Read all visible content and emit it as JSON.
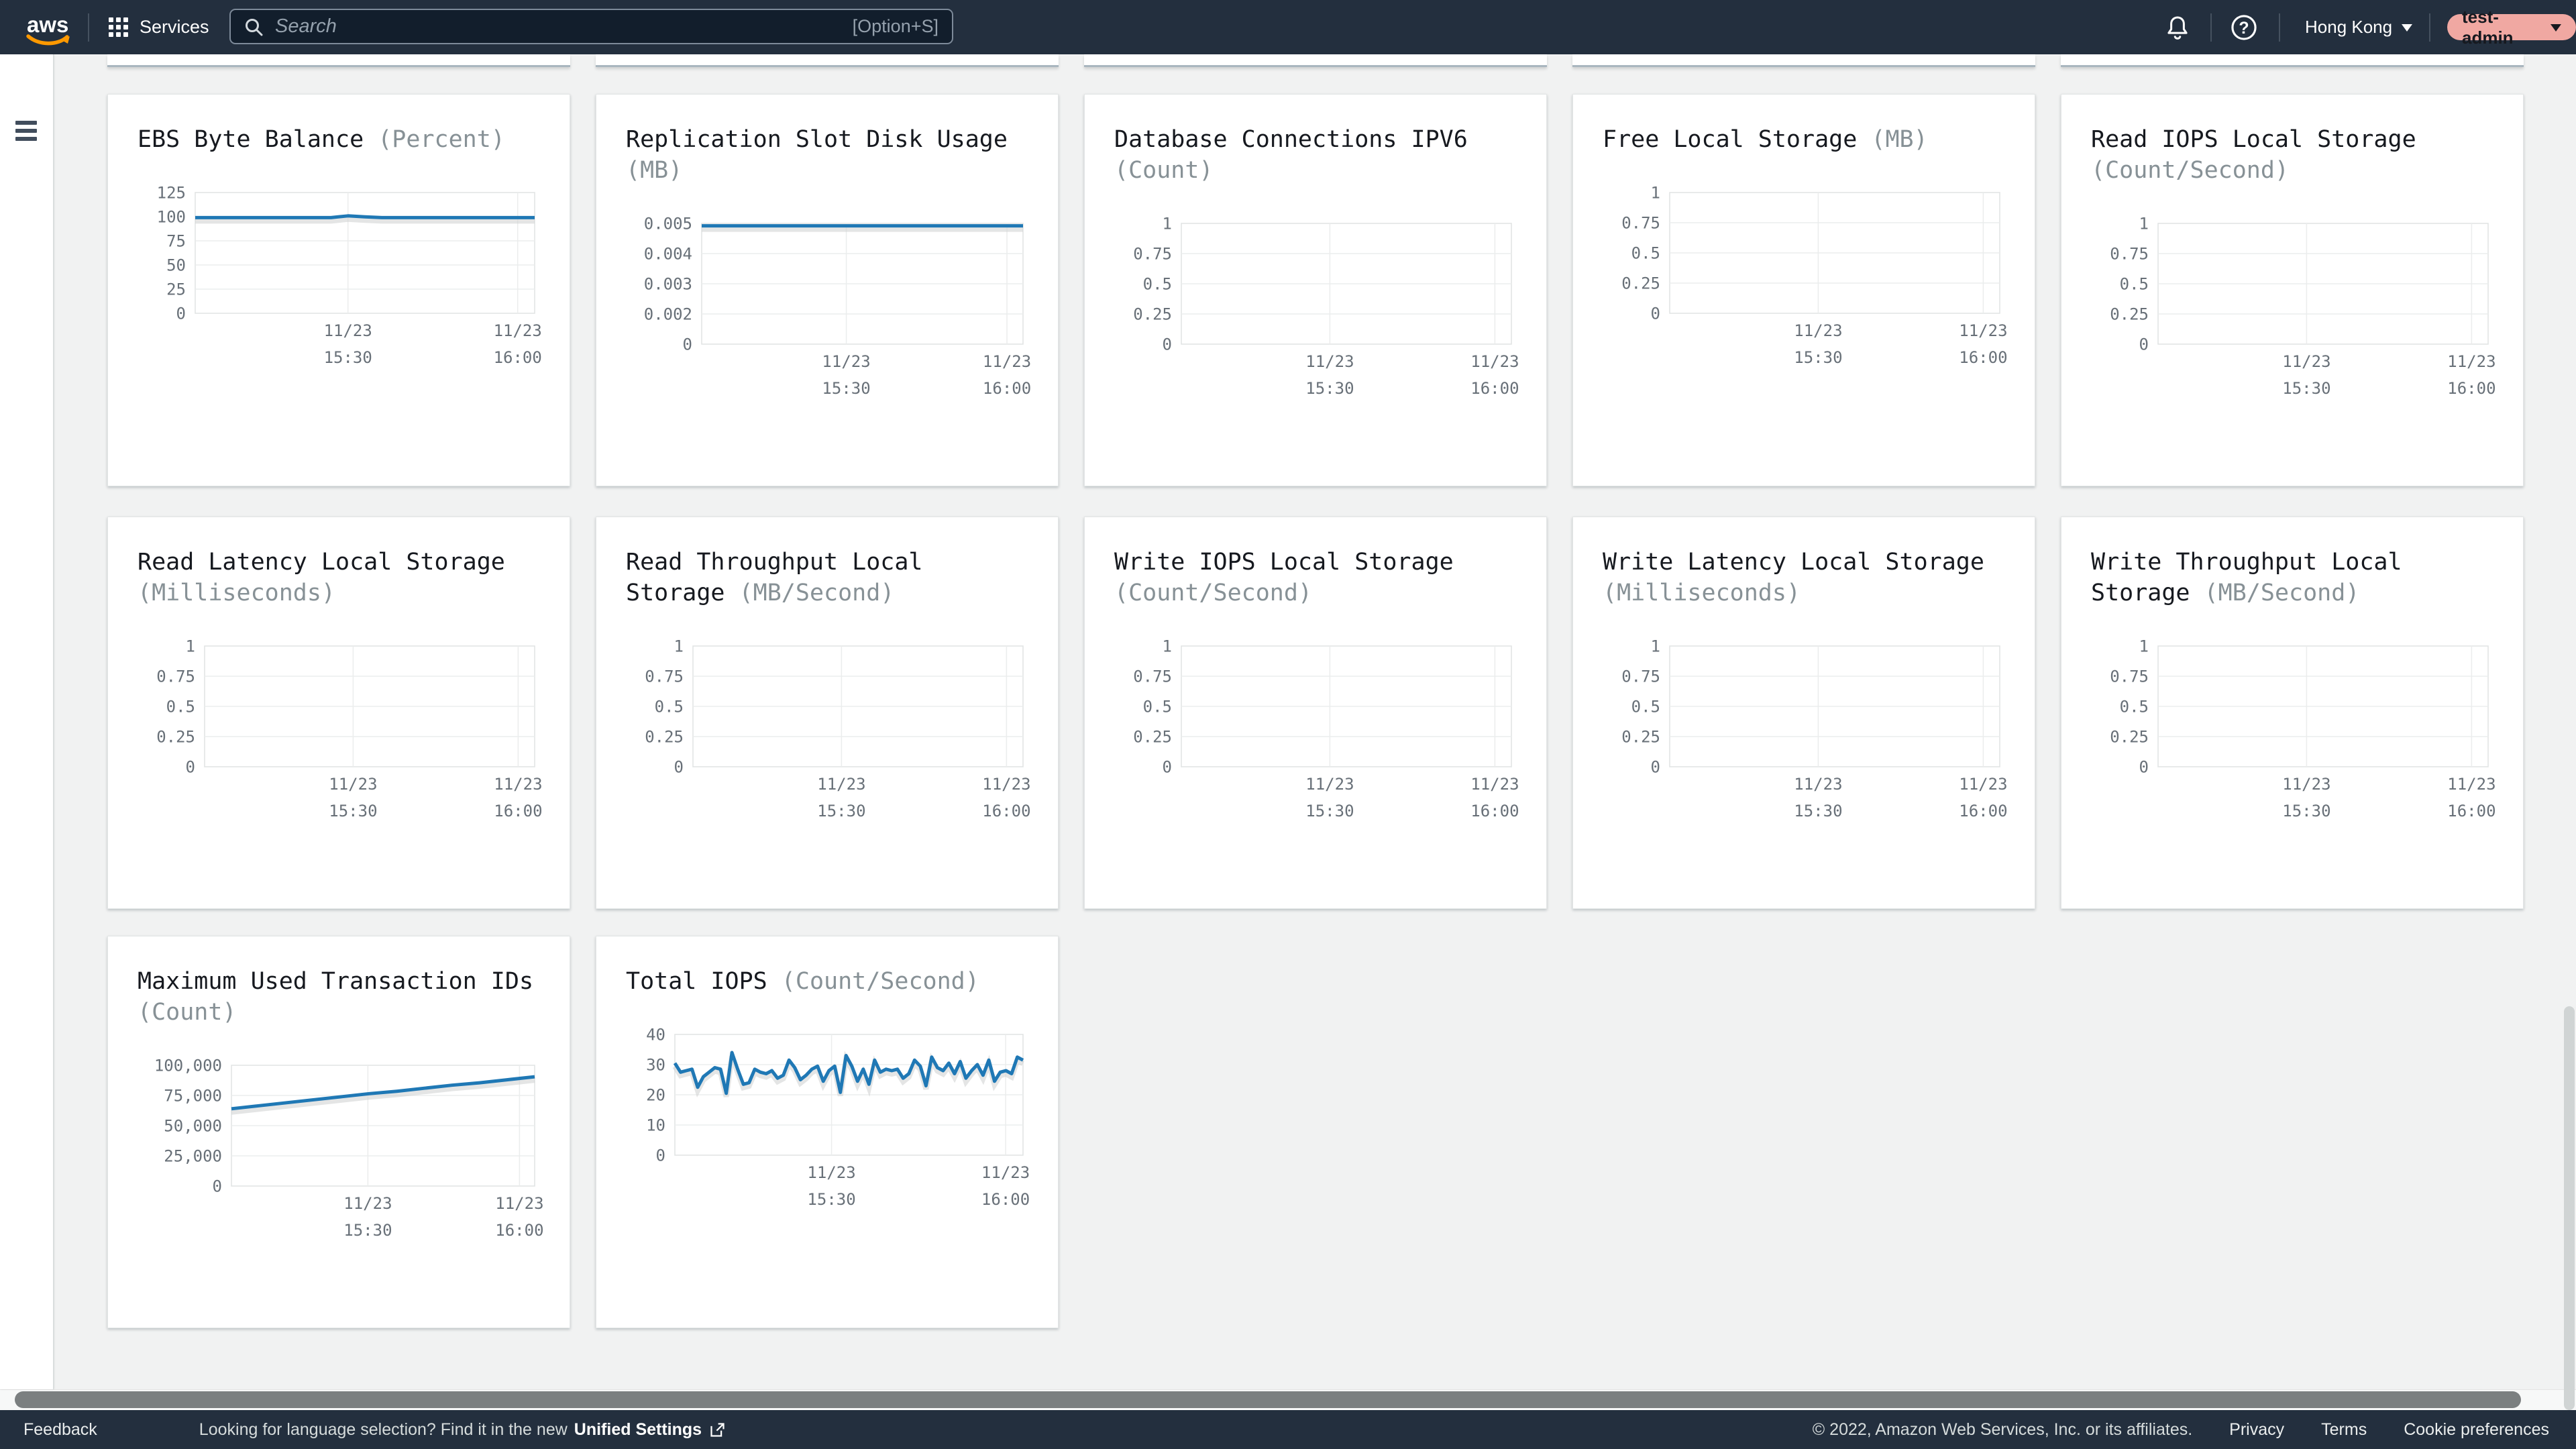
{
  "topbar": {
    "logo_text": "aws",
    "services_label": "Services",
    "search_placeholder": "Search",
    "search_shortcut": "[Option+S]",
    "region": "Hong Kong",
    "user": "test-admin"
  },
  "footer": {
    "feedback": "Feedback",
    "language_prompt": "Looking for language selection? Find it in the new",
    "language_link": "Unified Settings",
    "copyright": "© 2022, Amazon Web Services, Inc. or its affiliates.",
    "privacy": "Privacy",
    "terms": "Terms",
    "cookies": "Cookie preferences"
  },
  "x_ticks": [
    {
      "l1": "11/23",
      "l2": "15:30",
      "pos": 0.45
    },
    {
      "l1": "11/23",
      "l2": "16:00",
      "pos": 0.95
    }
  ],
  "charts": [
    {
      "title": "EBS Byte Balance",
      "unit": "(Percent)",
      "y_labels": [
        "125",
        "100",
        "75",
        "50",
        "25",
        "0"
      ],
      "y_top": 125,
      "series": [
        99,
        99,
        99,
        99,
        99,
        99,
        99,
        99,
        99,
        100.8,
        99.8,
        99,
        99,
        99,
        99,
        99,
        99,
        99,
        99,
        99,
        99
      ]
    },
    {
      "title": "Replication Slot Disk Usage",
      "unit": "(MB)",
      "y_labels": [
        "0.005",
        "0.004",
        "0.003",
        "0.002",
        "0"
      ],
      "y_top": 0.005,
      "series": [
        0.0049,
        0.0049,
        0.0049,
        0.0049,
        0.0049,
        0.0049,
        0.0049,
        0.0049,
        0.0049,
        0.0049,
        0.0049
      ]
    },
    {
      "title": "Database Connections IPV6",
      "unit": "(Count)",
      "y_labels": [
        "1",
        "0.75",
        "0.5",
        "0.25",
        "0"
      ],
      "y_top": 1,
      "series": []
    },
    {
      "title": "Free Local Storage",
      "unit": "(MB)",
      "y_labels": [
        "1",
        "0.75",
        "0.5",
        "0.25",
        "0"
      ],
      "y_top": 1,
      "series": []
    },
    {
      "title": "Read IOPS Local Storage",
      "unit": "(Count/Second)",
      "y_labels": [
        "1",
        "0.75",
        "0.5",
        "0.25",
        "0"
      ],
      "y_top": 1,
      "series": []
    },
    {
      "title": "Read Latency Local Storage",
      "unit": "(Milliseconds)",
      "y_labels": [
        "1",
        "0.75",
        "0.5",
        "0.25",
        "0"
      ],
      "y_top": 1,
      "series": []
    },
    {
      "title": "Read Throughput Local Storage",
      "unit": "(MB/Second)",
      "y_labels": [
        "1",
        "0.75",
        "0.5",
        "0.25",
        "0"
      ],
      "y_top": 1,
      "series": []
    },
    {
      "title": "Write IOPS Local Storage",
      "unit": "(Count/Second)",
      "y_labels": [
        "1",
        "0.75",
        "0.5",
        "0.25",
        "0"
      ],
      "y_top": 1,
      "series": []
    },
    {
      "title": "Write Latency Local Storage",
      "unit": "(Milliseconds)",
      "y_labels": [
        "1",
        "0.75",
        "0.5",
        "0.25",
        "0"
      ],
      "y_top": 1,
      "series": []
    },
    {
      "title": "Write Throughput Local Storage",
      "unit": "(MB/Second)",
      "y_labels": [
        "1",
        "0.75",
        "0.5",
        "0.25",
        "0"
      ],
      "y_top": 1,
      "series": []
    },
    {
      "title": "Maximum Used Transaction IDs",
      "unit": "(Count)",
      "y_labels": [
        "100,000",
        "75,000",
        "50,000",
        "25,000",
        "0"
      ],
      "y_top": 100000,
      "series": [
        64000,
        66500,
        69000,
        71500,
        74000,
        76500,
        78500,
        81000,
        83500,
        85500,
        88000,
        90500
      ]
    },
    {
      "title": "Total IOPS",
      "unit": "(Count/Second)",
      "y_labels": [
        "40",
        "30",
        "20",
        "10",
        "0"
      ],
      "y_top": 40,
      "series": [
        30.5,
        27.5,
        28,
        28.5,
        22.5,
        26,
        27.5,
        29,
        28.5,
        20.5,
        34,
        28.5,
        23.5,
        24,
        28.5,
        27.5,
        27,
        28,
        25.5,
        26.5,
        31.5,
        29,
        25,
        26.5,
        28.5,
        29.5,
        24.5,
        28,
        29.5,
        20.8,
        33,
        29.5,
        24.5,
        28.5,
        23.5,
        31.5,
        27.5,
        28.5,
        28,
        28.5,
        25.5,
        27,
        31.5,
        29.5,
        23,
        32.5,
        29,
        28,
        30.5,
        27,
        31,
        25.5,
        28,
        30,
        26.5,
        31.5,
        24.5,
        27.5,
        28,
        27,
        32.5,
        31.5
      ]
    }
  ],
  "colors": {
    "topbar_bg": "#232f3e",
    "page_bg": "#f1f2f2",
    "line_blue": "#1f78b5",
    "title_text": "#16191f",
    "unit_text": "#879196",
    "axis_text": "#687078",
    "accent_orange": "#ff9900",
    "user_pill_bg": "#f0a8a2"
  }
}
